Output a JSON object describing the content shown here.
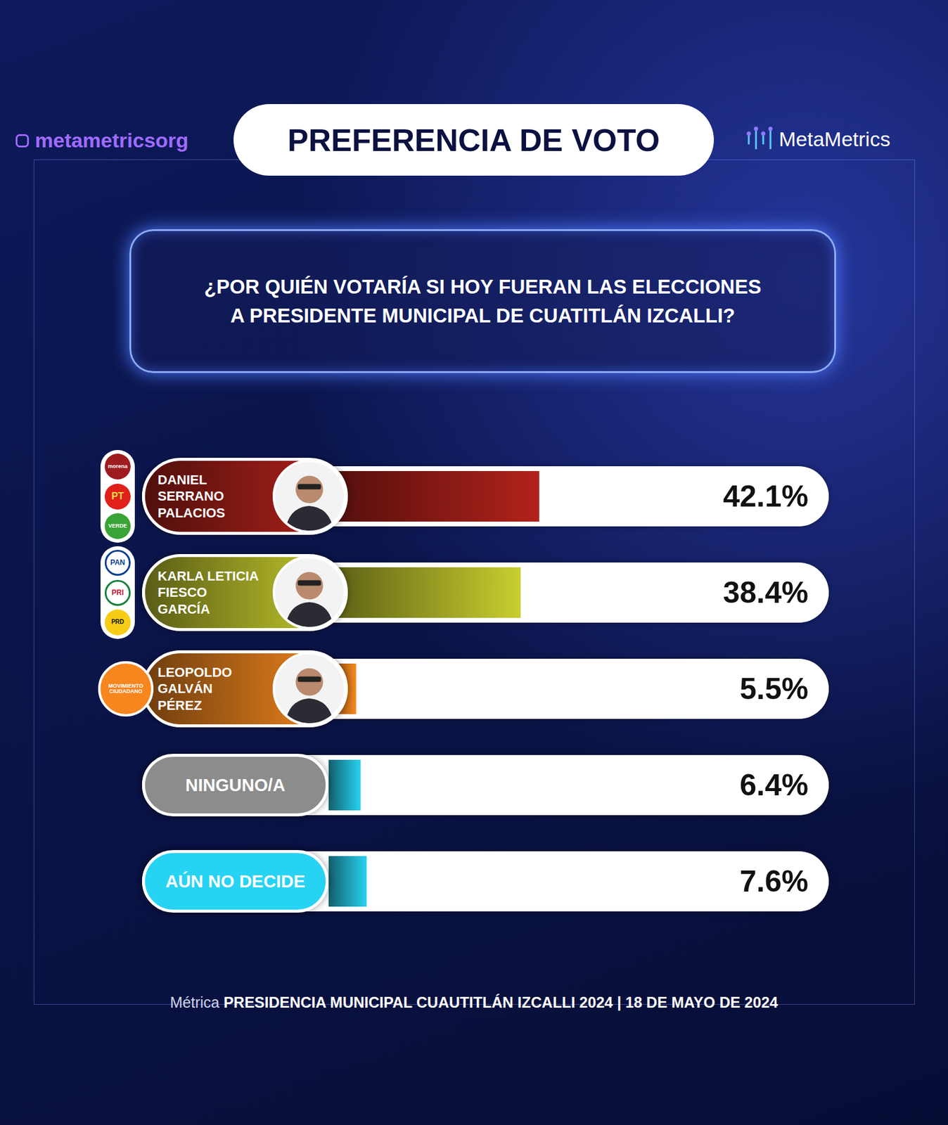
{
  "header": {
    "instagram": "metametricsorg",
    "title": "PREFERENCIA DE VOTO",
    "brand": "MetaMetrics"
  },
  "question": [
    "¿POR QUIÉN VOTARÍA SI HOY FUERAN LAS ELECCIONES",
    "A PRESIDENTE MUNICIPAL DE CUATITLÁN IZCALLI?"
  ],
  "chart_data": {
    "type": "bar",
    "orientation": "horizontal",
    "categories": [
      "DANIEL\nSERRANO\nPALACIOS",
      "KARLA LETICIA\nFIESCO\nGARCÍA",
      "LEOPOLDO\nGALVÁN\nPÉREZ",
      "NINGUNO/A",
      "AÚN NO DECIDE"
    ],
    "values": [
      42.1,
      38.4,
      5.5,
      6.4,
      7.6
    ],
    "value_labels": [
      "42.1%",
      "38.4%",
      "5.5%",
      "6.4%",
      "7.6%"
    ],
    "colors": [
      "#b3221b",
      "#c9cf2e",
      "#f7891f",
      "#27d3f2",
      "#27d3f2"
    ],
    "xlim": [
      0,
      100
    ],
    "tick_labels": false,
    "data_labels": true,
    "grid": false
  },
  "parties": [
    [
      "morena",
      "PT",
      "VERDE"
    ],
    [
      "PAN",
      "PRI",
      "PRD"
    ],
    [
      "MOVIMIENTO CIUDADANO"
    ],
    null,
    null
  ],
  "footer": {
    "prefix": "Métrica",
    "text": "PRESIDENCIA MUNICIPAL CUAUTITLÁN IZCALLI 2024 | 18 DE MAYO DE 2024"
  }
}
